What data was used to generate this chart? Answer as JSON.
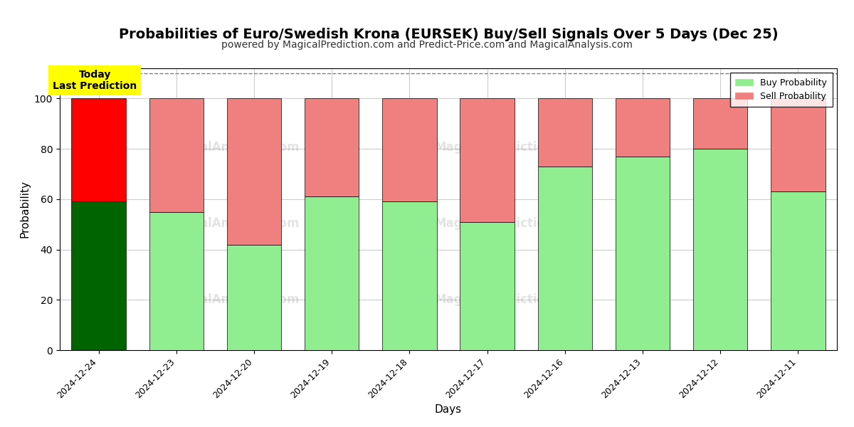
{
  "title": "Probabilities of Euro/Swedish Krona (EURSEK) Buy/Sell Signals Over 5 Days (Dec 25)",
  "subtitle": "powered by MagicalPrediction.com and Predict-Price.com and MagicalAnalysis.com",
  "xlabel": "Days",
  "ylabel": "Probability",
  "categories": [
    "2024-12-24",
    "2024-12-23",
    "2024-12-20",
    "2024-12-19",
    "2024-12-18",
    "2024-12-17",
    "2024-12-16",
    "2024-12-13",
    "2024-12-12",
    "2024-12-11"
  ],
  "buy_values": [
    59,
    55,
    42,
    61,
    59,
    51,
    73,
    77,
    80,
    63
  ],
  "sell_values": [
    41,
    45,
    58,
    39,
    41,
    49,
    27,
    23,
    20,
    37
  ],
  "buy_colors": [
    "#006400",
    "#90EE90",
    "#90EE90",
    "#90EE90",
    "#90EE90",
    "#90EE90",
    "#90EE90",
    "#90EE90",
    "#90EE90",
    "#90EE90"
  ],
  "sell_colors": [
    "#FF0000",
    "#F08080",
    "#F08080",
    "#F08080",
    "#F08080",
    "#F08080",
    "#F08080",
    "#F08080",
    "#F08080",
    "#F08080"
  ],
  "today_label": "Today\nLast Prediction",
  "ylim": [
    0,
    112
  ],
  "yticks": [
    0,
    20,
    40,
    60,
    80,
    100
  ],
  "dashed_line_y": 110,
  "legend_buy_color": "#90EE90",
  "legend_sell_color": "#F08080",
  "background_color": "#ffffff",
  "grid_color": "#cccccc",
  "title_fontsize": 14,
  "subtitle_fontsize": 10,
  "bar_edge_color": "#000000",
  "bar_edge_width": 0.5,
  "bar_width": 0.7
}
